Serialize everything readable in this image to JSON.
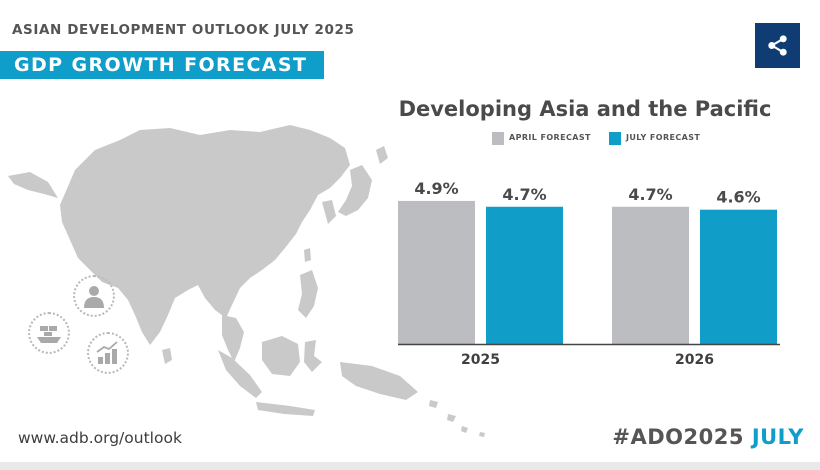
{
  "header": {
    "kicker": "ASIAN DEVELOPMENT OUTLOOK JULY 2025",
    "banner": "GDP GROWTH FORECAST"
  },
  "share": {
    "icon": "share-icon",
    "color": "#0f3d73"
  },
  "decor": {
    "map": "asia-pacific-map",
    "icons": [
      "person-icon",
      "shipping-container-icon",
      "coins-growth-icon"
    ]
  },
  "footer": {
    "url": "www.adb.org/outlook",
    "hashtag_main": "#ADO2025",
    "hashtag_accent": "JULY"
  },
  "chart_data": {
    "type": "bar",
    "title": "Developing Asia and the Pacific",
    "categories": [
      "2025",
      "2026"
    ],
    "series": [
      {
        "name": "APRIL FORECAST",
        "values": [
          4.9,
          4.7
        ],
        "labels": [
          "4.9%",
          "4.7%"
        ],
        "color": "#bcbdc0"
      },
      {
        "name": "JULY FORECAST",
        "values": [
          4.7,
          4.6
        ],
        "labels": [
          "4.7%",
          "4.6%"
        ],
        "color": "#109dc8"
      }
    ],
    "legend": "top",
    "grid": false
  }
}
